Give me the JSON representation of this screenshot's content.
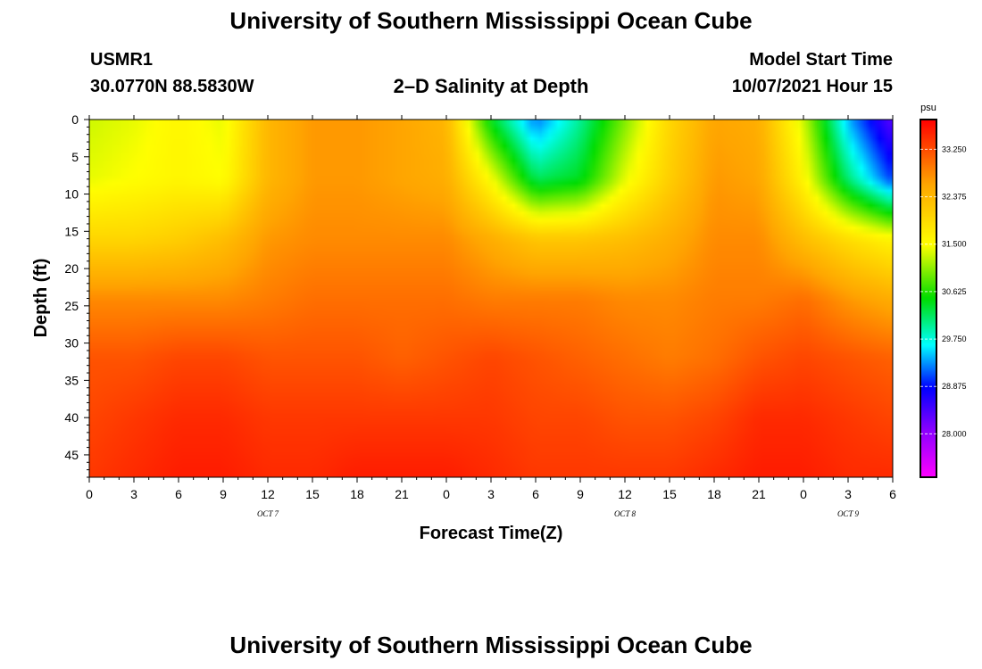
{
  "header": {
    "title_top": "University of Southern Mississippi Ocean Cube",
    "title_bottom": "University of Southern Mississippi Ocean Cube",
    "station": "USMR1",
    "coords": "30.0770N  88.5830W",
    "plot_title": "2–D Salinity at Depth",
    "start_label": "Model Start Time",
    "start_value": "10/07/2021 Hour 15"
  },
  "chart_data": {
    "type": "heatmap",
    "title": "2–D Salinity at Depth",
    "xlabel": "Forecast Time(Z)",
    "ylabel": "Depth (ft)",
    "x_tick_labels": [
      "0",
      "3",
      "6",
      "9",
      "12",
      "15",
      "18",
      "21",
      "0",
      "3",
      "6",
      "9",
      "12",
      "15",
      "18",
      "21",
      "0",
      "3",
      "6"
    ],
    "x_range_hours": [
      0,
      54
    ],
    "x_date_labels": [
      {
        "label": "OCT 7",
        "hour": 12
      },
      {
        "label": "OCT 8",
        "hour": 36
      },
      {
        "label": "OCT 9",
        "hour": 51
      }
    ],
    "y_ticks": [
      0,
      5,
      10,
      15,
      20,
      25,
      30,
      35,
      40,
      45
    ],
    "ylim": [
      0,
      48
    ],
    "colorbar": {
      "unit": "psu",
      "range": [
        27.2,
        33.8
      ],
      "tick_values": [
        33.25,
        32.375,
        31.5,
        30.625,
        29.75,
        28.875,
        28.0
      ],
      "tick_labels": [
        "33.250",
        "32.375",
        "31.500",
        "30.625",
        "29.750",
        "28.875",
        "28.000"
      ]
    },
    "grid_depth_ft": [
      0,
      8,
      16,
      24,
      32,
      40,
      48
    ],
    "grid_time_hours": [
      0,
      3,
      6,
      9,
      12,
      15,
      18,
      21,
      24,
      27,
      30,
      33,
      36,
      39,
      42,
      45,
      48,
      51,
      54
    ],
    "grid_salinity_psu": [
      [
        31.3,
        31.4,
        31.6,
        31.4,
        32.4,
        32.7,
        32.7,
        32.6,
        32.4,
        30.4,
        29.2,
        30.0,
        31.0,
        32.0,
        32.6,
        32.5,
        31.3,
        29.4,
        28.3
      ],
      [
        31.4,
        31.5,
        31.6,
        31.5,
        32.4,
        32.7,
        32.7,
        32.6,
        32.5,
        31.5,
        30.2,
        30.4,
        31.4,
        32.1,
        32.7,
        32.6,
        31.6,
        30.1,
        29.0
      ],
      [
        32.0,
        32.0,
        32.1,
        32.3,
        32.7,
        32.8,
        32.8,
        32.8,
        32.8,
        32.5,
        32.2,
        32.2,
        32.3,
        32.5,
        32.8,
        32.8,
        32.3,
        31.9,
        31.6
      ],
      [
        32.8,
        32.8,
        32.8,
        32.8,
        32.9,
        33.0,
        33.0,
        33.0,
        33.0,
        32.9,
        32.9,
        32.9,
        32.8,
        32.8,
        32.9,
        32.9,
        33.0,
        32.7,
        32.5
      ],
      [
        33.2,
        33.2,
        33.3,
        33.3,
        33.2,
        33.2,
        33.2,
        33.1,
        33.2,
        33.3,
        33.2,
        33.1,
        33.0,
        32.9,
        33.0,
        33.2,
        33.3,
        33.2,
        33.1
      ],
      [
        33.3,
        33.4,
        33.5,
        33.5,
        33.4,
        33.4,
        33.4,
        33.4,
        33.4,
        33.4,
        33.3,
        33.3,
        33.2,
        33.2,
        33.3,
        33.5,
        33.5,
        33.4,
        33.3
      ],
      [
        33.4,
        33.5,
        33.6,
        33.6,
        33.5,
        33.5,
        33.6,
        33.6,
        33.6,
        33.5,
        33.4,
        33.4,
        33.4,
        33.4,
        33.5,
        33.6,
        33.6,
        33.5,
        33.5
      ]
    ]
  }
}
